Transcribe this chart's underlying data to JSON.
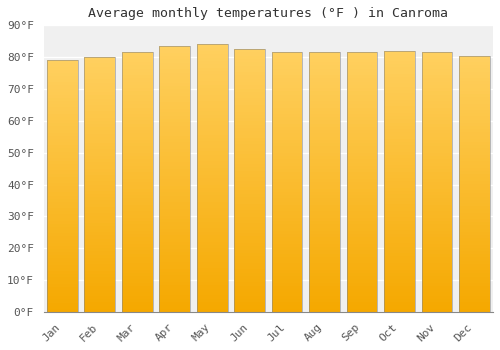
{
  "title": "Average monthly temperatures (°F ) in Canroma",
  "months": [
    "Jan",
    "Feb",
    "Mar",
    "Apr",
    "May",
    "Jun",
    "Jul",
    "Aug",
    "Sep",
    "Oct",
    "Nov",
    "Dec"
  ],
  "values": [
    79,
    80,
    81.5,
    83.5,
    84,
    82.5,
    81.5,
    81.5,
    81.5,
    82,
    81.5,
    80.5
  ],
  "bar_color_bottom": "#F5A800",
  "bar_color_top": "#FFD060",
  "background_color": "#FFFFFF",
  "plot_bg_color": "#F0F0F0",
  "grid_color": "#FFFFFF",
  "text_color": "#555555",
  "ylim": [
    0,
    90
  ],
  "ytick_interval": 10,
  "title_fontsize": 9.5,
  "tick_fontsize": 8,
  "bar_width": 0.82,
  "n_gradient_segments": 80
}
